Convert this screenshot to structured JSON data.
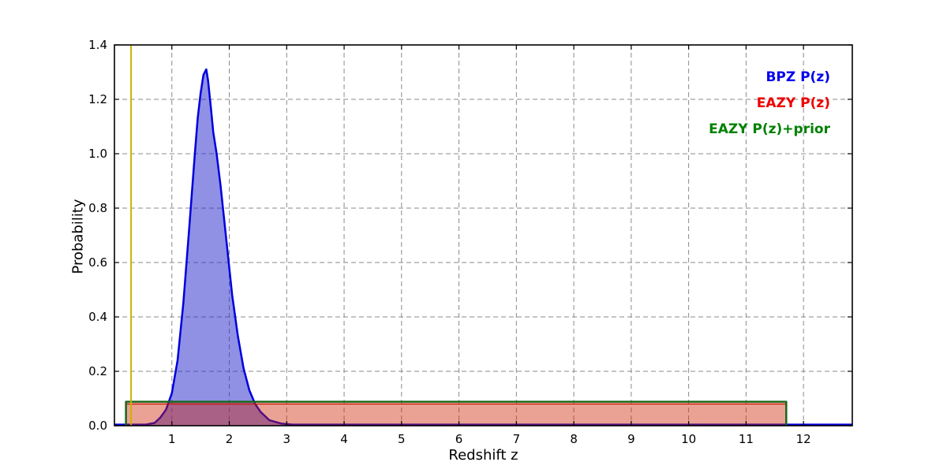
{
  "figure": {
    "background_color": "#ffffff"
  },
  "chart_data": {
    "type": "line",
    "title": "",
    "xlabel": "Redshift z",
    "ylabel": "Probability",
    "xlim": [
      0,
      12.85
    ],
    "ylim": [
      0,
      1.4
    ],
    "xticks": [
      1,
      2,
      3,
      4,
      5,
      6,
      7,
      8,
      9,
      10,
      11,
      12
    ],
    "ytick_labels": [
      "0.0",
      "0.2",
      "0.4",
      "0.6",
      "0.8",
      "1.0",
      "1.2",
      "1.4"
    ],
    "grid": true,
    "grid_style": "dashed",
    "legend": {
      "position": "top-right",
      "items": [
        {
          "label": "BPZ P(z)",
          "color": "#0000ee"
        },
        {
          "label": "EAZY P(z)",
          "color": "#ee0000"
        },
        {
          "label": "EAZY P(z)+prior",
          "color": "#008000"
        }
      ]
    },
    "series": [
      {
        "name": "BPZ P(z)",
        "line_color": "#0000dd",
        "fill_color": "#2222cc",
        "fill_opacity": 0.5,
        "line_width": 2.5,
        "x": [
          0.0,
          0.55,
          0.7,
          0.8,
          0.9,
          1.0,
          1.1,
          1.2,
          1.3,
          1.4,
          1.45,
          1.5,
          1.55,
          1.6,
          1.63,
          1.68,
          1.72,
          1.78,
          1.85,
          1.95,
          2.05,
          2.15,
          2.25,
          2.35,
          2.45,
          2.55,
          2.7,
          2.9,
          3.1,
          3.5,
          12.85
        ],
        "y": [
          0.004,
          0.004,
          0.01,
          0.03,
          0.06,
          0.12,
          0.24,
          0.45,
          0.72,
          1.0,
          1.13,
          1.22,
          1.29,
          1.31,
          1.27,
          1.17,
          1.08,
          1.0,
          0.88,
          0.68,
          0.48,
          0.33,
          0.21,
          0.13,
          0.08,
          0.05,
          0.02,
          0.008,
          0.004,
          0.004,
          0.004
        ]
      },
      {
        "name": "EAZY P(z)",
        "line_color": "#cc1100",
        "fill_color": "#cc2200",
        "fill_opacity": 0.42,
        "line_width": 1.5,
        "x": [
          0.2,
          0.2,
          11.7,
          11.7
        ],
        "y": [
          0.0,
          0.08,
          0.08,
          0.0
        ]
      },
      {
        "name": "EAZY P(z)+prior",
        "line_color": "#1a661a",
        "fill_color": "",
        "fill_opacity": 0,
        "line_width": 2.5,
        "x": [
          0.2,
          0.2,
          11.7,
          11.7
        ],
        "y": [
          0.0,
          0.088,
          0.088,
          0.0
        ]
      }
    ],
    "vline": {
      "x": 0.29,
      "color": "#c8b400",
      "width": 2
    }
  }
}
